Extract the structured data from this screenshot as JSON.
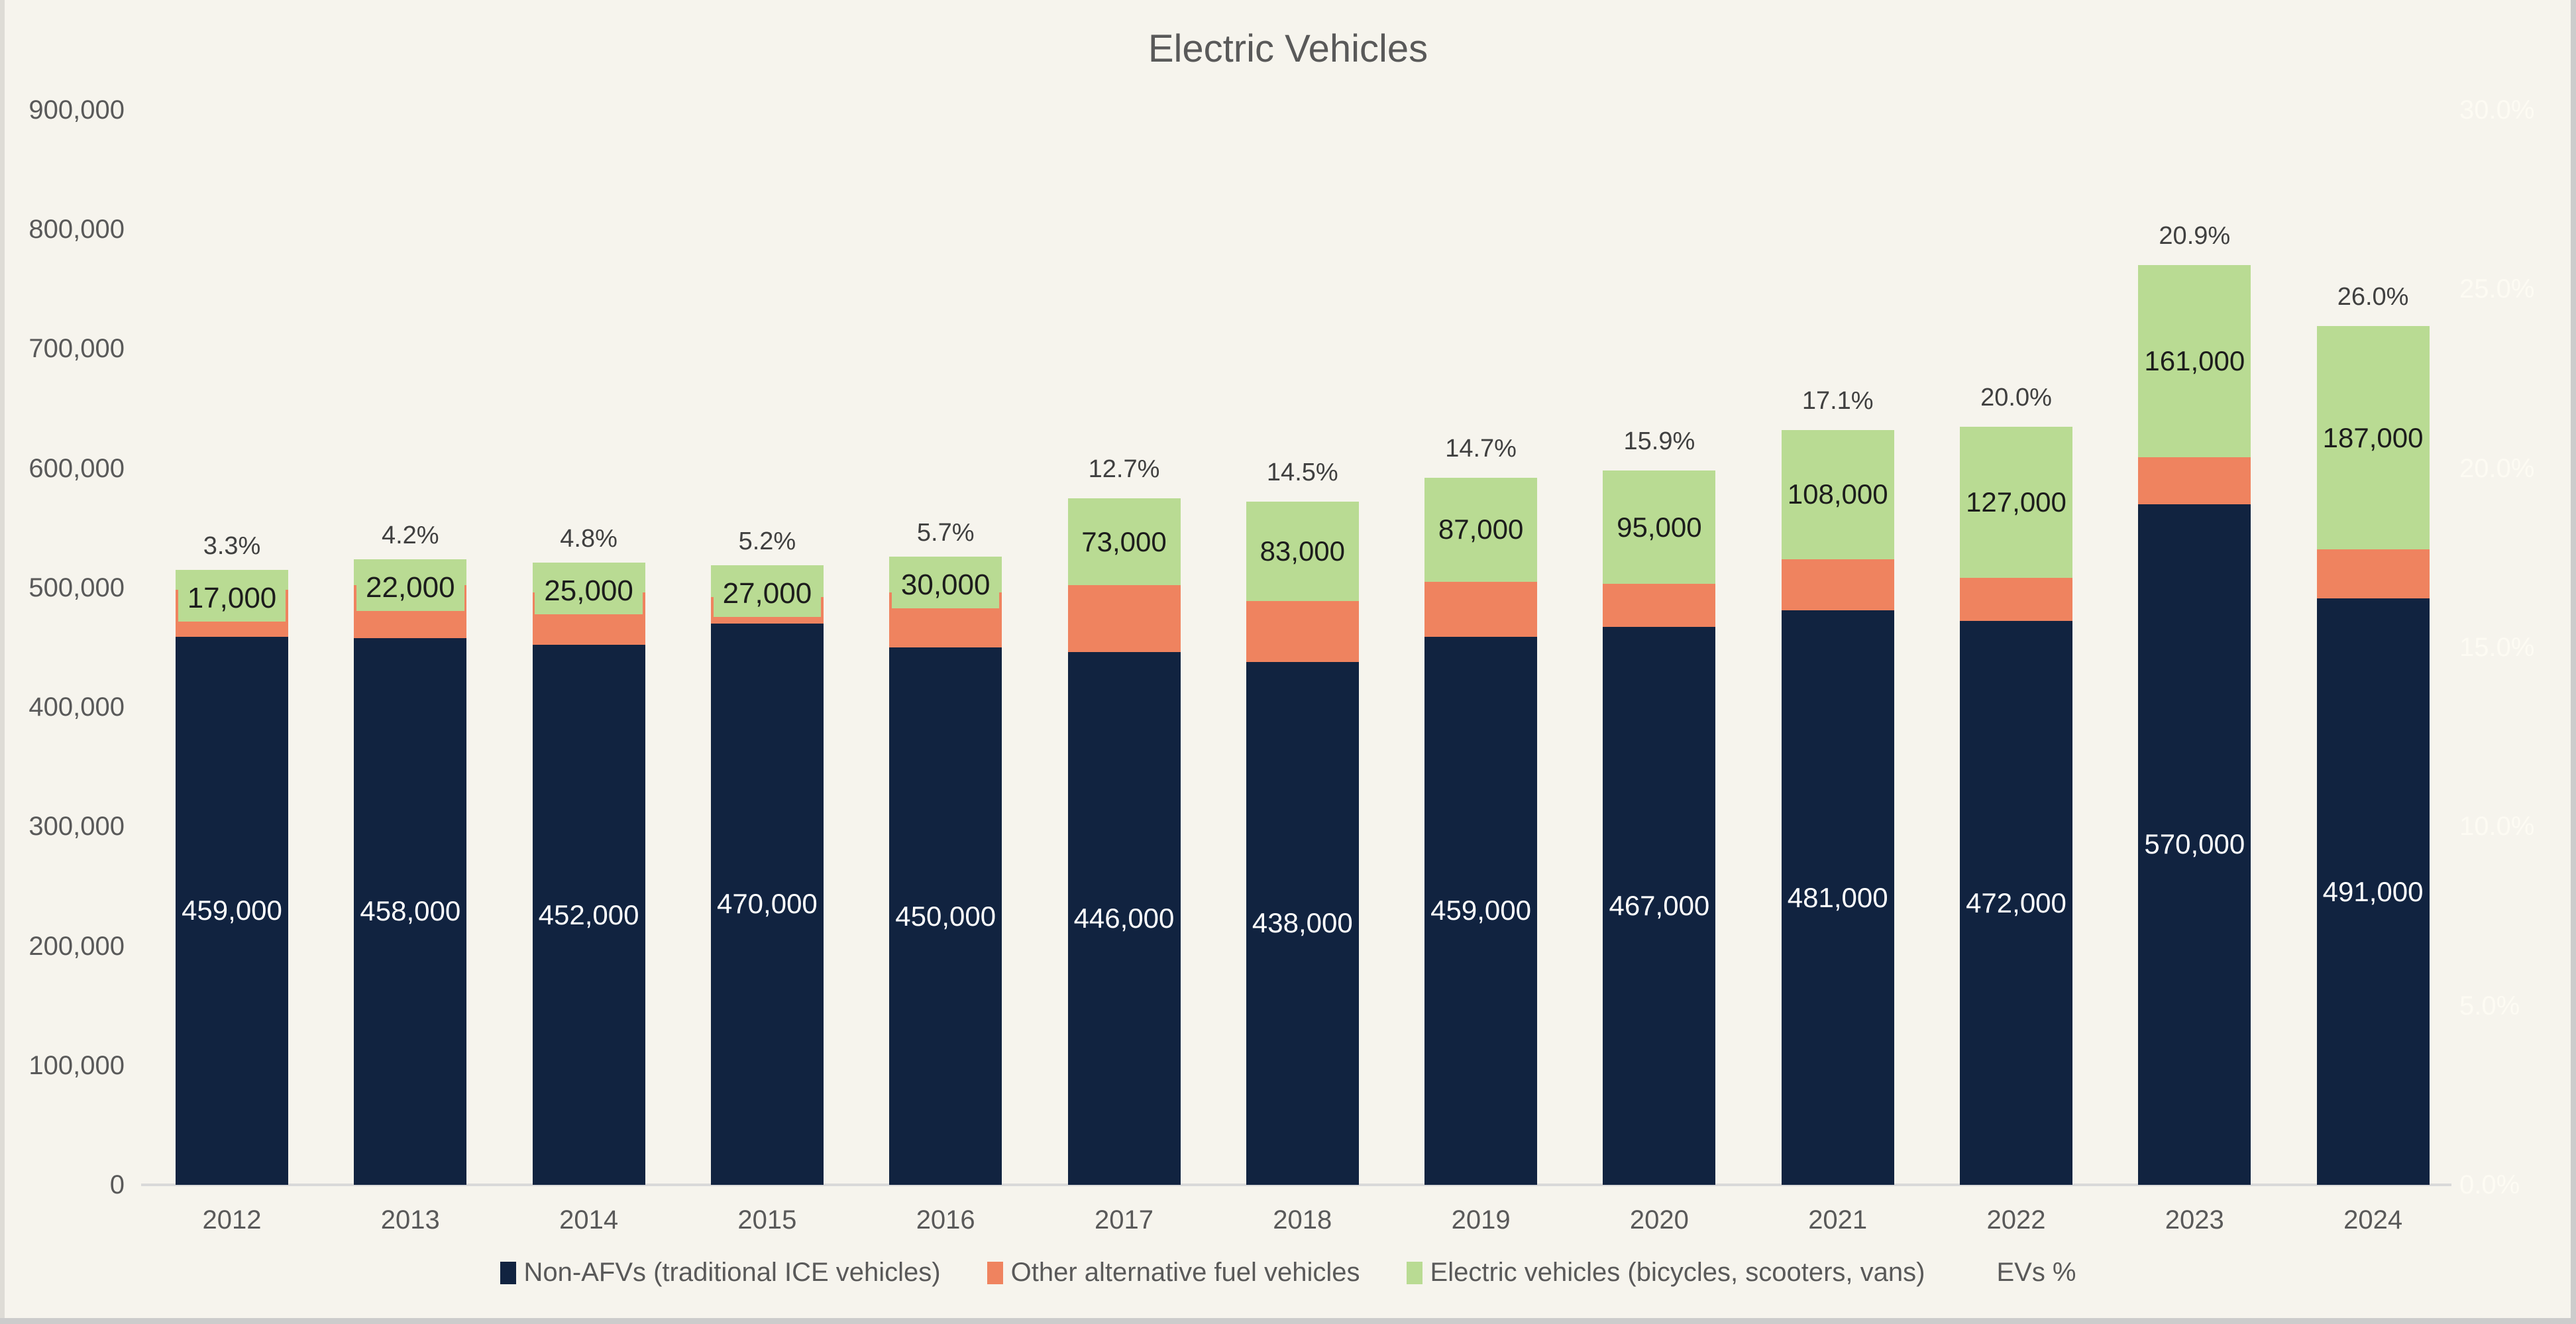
{
  "title": "Electric Vehicles",
  "chart_data": {
    "type": "bar",
    "stacked": true,
    "title": "Electric Vehicles",
    "grid": false,
    "legend_position": "bottom",
    "categories": [
      "2012",
      "2013",
      "2014",
      "2015",
      "2016",
      "2017",
      "2018",
      "2019",
      "2020",
      "2021",
      "2022",
      "2023",
      "2024"
    ],
    "series": [
      {
        "name": "Non-AFVs (traditional ICE vehicles)",
        "color": "#112340",
        "values": [
          459000,
          458000,
          452000,
          470000,
          450000,
          446000,
          438000,
          459000,
          467000,
          481000,
          472000,
          570000,
          491000
        ],
        "labels": [
          "459,000",
          "458,000",
          "452,000",
          "470,000",
          "450,000",
          "446,000",
          "438,000",
          "459,000",
          "467,000",
          "481,000",
          "472,000",
          "570,000",
          "491,000"
        ],
        "label_color": "#ffffff"
      },
      {
        "name": "Other alternative fuel vehicles",
        "color": "#ef835f",
        "values": [
          39000,
          44000,
          44000,
          22000,
          46000,
          56000,
          51000,
          46000,
          36000,
          43000,
          36000,
          39000,
          41000
        ],
        "values_note": "unlabeled in chart; estimated from segment heights and EV percentages",
        "labels": []
      },
      {
        "name": "Electric vehicles (bicycles, scooters, vans)",
        "color": "#b9db93",
        "values": [
          17000,
          22000,
          25000,
          27000,
          30000,
          73000,
          83000,
          87000,
          95000,
          108000,
          127000,
          161000,
          187000
        ],
        "labels": [
          "17,000",
          "22,000",
          "25,000",
          "27,000",
          "30,000",
          "73,000",
          "83,000",
          "87,000",
          "95,000",
          "108,000",
          "127,000",
          "161,000",
          "187,000"
        ],
        "label_color": "#1c1c1c"
      },
      {
        "name": "EVs %",
        "type": "line",
        "axis": "right",
        "values": [
          3.3,
          4.2,
          4.8,
          5.2,
          5.7,
          12.7,
          14.5,
          14.7,
          15.9,
          17.1,
          20.0,
          20.9,
          26.0
        ],
        "labels": [
          "3.3%",
          "4.2%",
          "4.8%",
          "5.2%",
          "5.7%",
          "12.7%",
          "14.5%",
          "14.7%",
          "15.9%",
          "17.1%",
          "20.0%",
          "20.9%",
          "26.0%"
        ],
        "label_color": "#404040"
      }
    ],
    "left_axis": {
      "min": 0,
      "max": 900000,
      "step": 100000,
      "tick_labels": [
        "0",
        "100,000",
        "200,000",
        "300,000",
        "400,000",
        "500,000",
        "600,000",
        "700,000",
        "800,000",
        "900,000"
      ]
    },
    "right_axis": {
      "min": 0,
      "max": 30,
      "step": 5,
      "tick_labels": [
        "0.0%",
        "5.0%",
        "10.0%",
        "15.0%",
        "20.0%",
        "25.0%",
        "30.0%"
      ],
      "text_color": "#fdfbf3"
    }
  },
  "legend": {
    "items": [
      {
        "label": "Non-AFVs (traditional ICE vehicles)",
        "color": "#112340"
      },
      {
        "label": "Other alternative fuel vehicles",
        "color": "#ef835f"
      },
      {
        "label": "Electric vehicles (bicycles, scooters, vans)",
        "color": "#b9db93"
      },
      {
        "label": "EVs %",
        "color": null
      }
    ]
  },
  "colors": {
    "background": "#f6f4ed",
    "axis_text": "#595959",
    "axis_line": "#d9d9d9",
    "title_text": "#595959",
    "percent_label": "#404040",
    "right_axis_text": "#fdfbf3"
  }
}
